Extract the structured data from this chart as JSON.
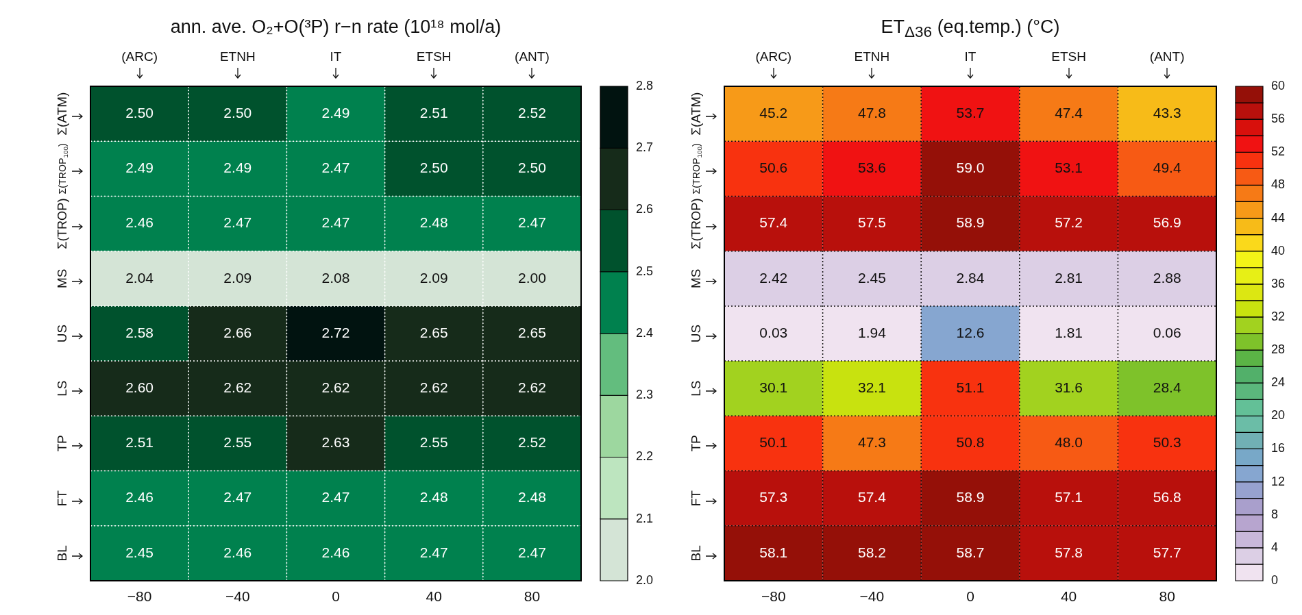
{
  "chart_data": [
    {
      "type": "heatmap",
      "title": "ann. ave. O₂+O(³P) r−n rate (10¹⁸ mol/a)",
      "categories": [
        "(ARC)",
        "ETNH",
        "IT",
        "ETSH",
        "(ANT)"
      ],
      "y_categories": [
        "Σ(ATM)",
        "Σ(TROP$_{100}$)",
        "Σ(TROP)",
        "MS",
        "US",
        "LS",
        "TP",
        "FT",
        "BL"
      ],
      "cells": [
        [
          2.5,
          2.5,
          2.49,
          2.51,
          2.52
        ],
        [
          2.49,
          2.49,
          2.47,
          2.5,
          2.5
        ],
        [
          2.46,
          2.47,
          2.47,
          2.48,
          2.47
        ],
        [
          2.04,
          2.09,
          2.08,
          2.09,
          2.0
        ],
        [
          2.58,
          2.66,
          2.72,
          2.65,
          2.65
        ],
        [
          2.6,
          2.62,
          2.62,
          2.62,
          2.62
        ],
        [
          2.51,
          2.55,
          2.63,
          2.55,
          2.52
        ],
        [
          2.46,
          2.47,
          2.47,
          2.48,
          2.48
        ],
        [
          2.45,
          2.46,
          2.46,
          2.47,
          2.47
        ]
      ],
      "cell_labels": [
        [
          "2.50",
          "2.50",
          "2.49",
          "2.51",
          "2.52"
        ],
        [
          "2.49",
          "2.49",
          "2.47",
          "2.50",
          "2.50"
        ],
        [
          "2.46",
          "2.47",
          "2.47",
          "2.48",
          "2.47"
        ],
        [
          "2.04",
          "2.09",
          "2.08",
          "2.09",
          "2.00"
        ],
        [
          "2.58",
          "2.66",
          "2.72",
          "2.65",
          "2.65"
        ],
        [
          "2.60",
          "2.62",
          "2.62",
          "2.62",
          "2.62"
        ],
        [
          "2.51",
          "2.55",
          "2.63",
          "2.55",
          "2.52"
        ],
        [
          "2.46",
          "2.47",
          "2.47",
          "2.48",
          "2.48"
        ],
        [
          "2.45",
          "2.46",
          "2.46",
          "2.47",
          "2.47"
        ]
      ],
      "clim": [
        2.0,
        2.8
      ],
      "cticks": [
        {
          "value": 2.0,
          "label": "2.0"
        },
        {
          "value": 2.1,
          "label": "2.1"
        },
        {
          "value": 2.2,
          "label": "2.2"
        },
        {
          "value": 2.3,
          "label": "2.3"
        },
        {
          "value": 2.4,
          "label": "2.4"
        },
        {
          "value": 2.5,
          "label": "2.5"
        },
        {
          "value": 2.6,
          "label": "2.6"
        },
        {
          "value": 2.7,
          "label": "2.7"
        },
        {
          "value": 2.8,
          "label": "2.8"
        }
      ],
      "annotations": [
        "−80",
        "−40",
        "0",
        "40",
        "80"
      ],
      "grid": true
    },
    {
      "type": "heatmap",
      "title": "ET$_{Δ36}$ (eq.temp.) (°C)",
      "categories": [
        "(ARC)",
        "ETNH",
        "IT",
        "ETSH",
        "(ANT)"
      ],
      "y_categories": [
        "Σ(ATM)",
        "Σ(TROP$_{100}$)",
        "Σ(TROP)",
        "MS",
        "US",
        "LS",
        "TP",
        "FT",
        "BL"
      ],
      "cells": [
        [
          45.2,
          47.8,
          53.7,
          47.4,
          43.3
        ],
        [
          50.6,
          53.6,
          59.0,
          53.1,
          49.4
        ],
        [
          57.4,
          57.5,
          58.9,
          57.2,
          56.9
        ],
        [
          2.42,
          2.45,
          2.84,
          2.81,
          2.88
        ],
        [
          0.03,
          1.94,
          12.6,
          1.81,
          0.06
        ],
        [
          30.1,
          32.1,
          51.1,
          31.6,
          28.4
        ],
        [
          50.1,
          47.3,
          50.8,
          48.0,
          50.3
        ],
        [
          57.3,
          57.4,
          58.9,
          57.1,
          56.8
        ],
        [
          58.1,
          58.2,
          58.7,
          57.8,
          57.7
        ]
      ],
      "cell_labels": [
        [
          "45.2",
          "47.8",
          "53.7",
          "47.4",
          "43.3"
        ],
        [
          "50.6",
          "53.6",
          "59.0",
          "53.1",
          "49.4"
        ],
        [
          "57.4",
          "57.5",
          "58.9",
          "57.2",
          "56.9"
        ],
        [
          "2.42",
          "2.45",
          "2.84",
          "2.81",
          "2.88"
        ],
        [
          "0.03",
          "1.94",
          "12.6",
          "1.81",
          "0.06"
        ],
        [
          "30.1",
          "32.1",
          "51.1",
          "31.6",
          "28.4"
        ],
        [
          "50.1",
          "47.3",
          "50.8",
          "48.0",
          "50.3"
        ],
        [
          "57.3",
          "57.4",
          "58.9",
          "57.1",
          "56.8"
        ],
        [
          "58.1",
          "58.2",
          "58.7",
          "57.8",
          "57.7"
        ]
      ],
      "clim": [
        0,
        60
      ],
      "cticks": [
        0,
        4,
        8,
        12,
        16,
        20,
        24,
        28,
        32,
        36,
        40,
        44,
        48,
        52,
        56,
        60
      ],
      "annotations": [
        "−80",
        "−40",
        "0",
        "40",
        "80"
      ],
      "grid": true
    }
  ]
}
